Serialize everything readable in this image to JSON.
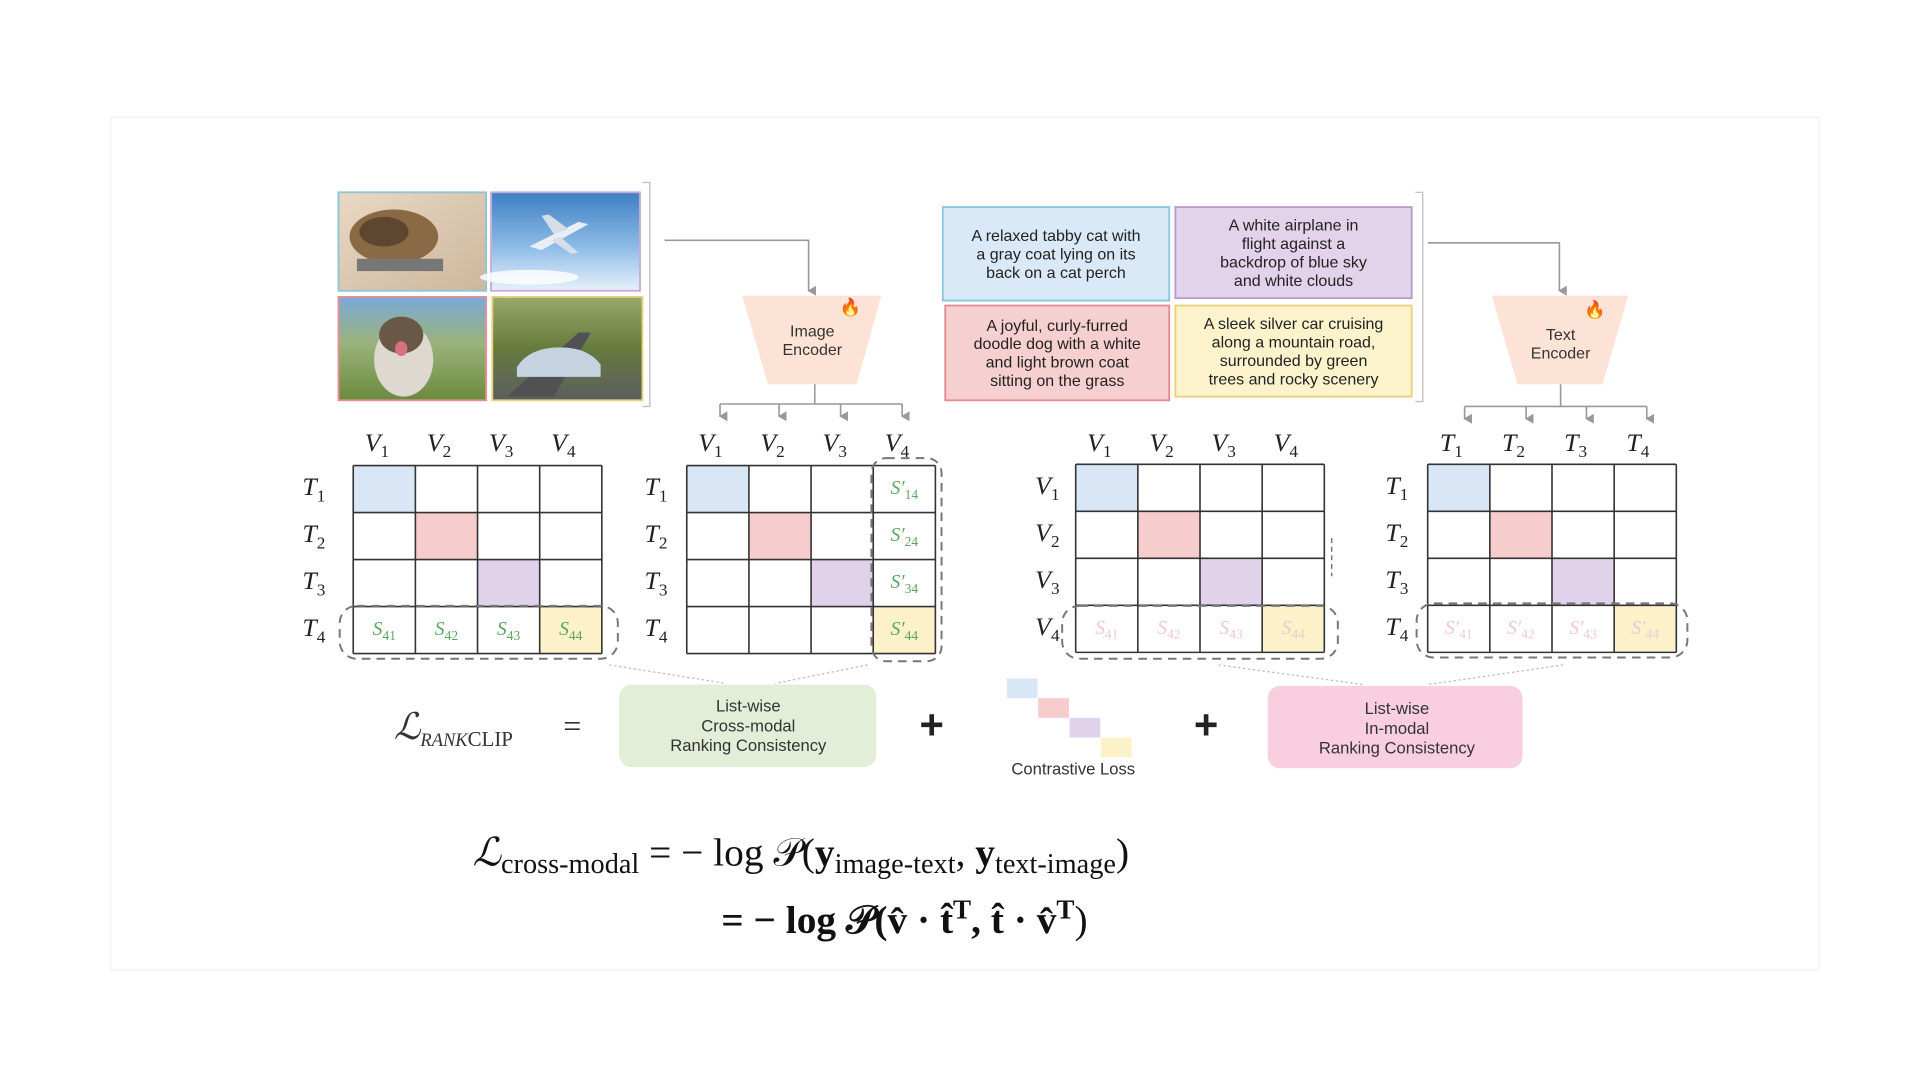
{
  "images": [
    {
      "subject": "cat",
      "border": "#8cc5d6"
    },
    {
      "subject": "airplane",
      "border": "#c9a9d6"
    },
    {
      "subject": "dog",
      "border": "#e88f96"
    },
    {
      "subject": "car",
      "border": "#e6d27a"
    }
  ],
  "captions": [
    {
      "text": [
        "A relaxed tabby cat with",
        "a gray coat lying on its",
        "back on a cat perch"
      ],
      "fill": "#d9e9f7",
      "border": "#8cc5e0"
    },
    {
      "text": [
        "A white airplane in",
        "flight against a",
        "backdrop of blue sky",
        "and white clouds"
      ],
      "fill": "#e3d3ea",
      "border": "#b99bc9"
    },
    {
      "text": [
        "A joyful, curly-furred",
        "doodle dog with a white",
        "and light brown coat",
        "sitting on the grass"
      ],
      "fill": "#f6cfd0",
      "border": "#e28c92"
    },
    {
      "text": [
        "A sleek silver car cruising",
        "along a mountain road,",
        "surrounded by green",
        "trees and rocky scenery"
      ],
      "fill": "#fcf3cc",
      "border": "#e6d27a"
    }
  ],
  "encoders": {
    "image": [
      "Image",
      "Encoder"
    ],
    "text": [
      "Text",
      "Encoder"
    ],
    "fill": "#fde3d6",
    "flame_icon": "fire"
  },
  "diagonal_colors": [
    "#d8e6f6",
    "#f6cccc",
    "#e0d2ea",
    "#fcf1c8"
  ],
  "matrices": [
    {
      "cols": [
        [
          "V",
          "1"
        ],
        [
          "V",
          "2"
        ],
        [
          "V",
          "3"
        ],
        [
          "V",
          "4"
        ]
      ],
      "rows": [
        [
          "T",
          "1"
        ],
        [
          "T",
          "2"
        ],
        [
          "T",
          "3"
        ],
        [
          "T",
          "4"
        ]
      ],
      "scores": [
        {
          "r": 3,
          "c": 0,
          "b": "S",
          "s": "41"
        },
        {
          "r": 3,
          "c": 1,
          "b": "S",
          "s": "42"
        },
        {
          "r": 3,
          "c": 2,
          "b": "S",
          "s": "43"
        },
        {
          "r": 3,
          "c": 3,
          "b": "S",
          "s": "44"
        }
      ],
      "score_color": "#5aa860"
    },
    {
      "cols": [
        [
          "V",
          "1"
        ],
        [
          "V",
          "2"
        ],
        [
          "V",
          "3"
        ],
        [
          "V",
          "4"
        ]
      ],
      "rows": [
        [
          "T",
          "1"
        ],
        [
          "T",
          "2"
        ],
        [
          "T",
          "3"
        ],
        [
          "T",
          "4"
        ]
      ],
      "scores": [
        {
          "r": 0,
          "c": 3,
          "b": "S′",
          "s": "14"
        },
        {
          "r": 1,
          "c": 3,
          "b": "S′",
          "s": "24"
        },
        {
          "r": 2,
          "c": 3,
          "b": "S′",
          "s": "34"
        },
        {
          "r": 3,
          "c": 3,
          "b": "S′",
          "s": "44"
        }
      ],
      "score_color": "#5aa860"
    },
    {
      "cols": [
        [
          "V",
          "1"
        ],
        [
          "V",
          "2"
        ],
        [
          "V",
          "3"
        ],
        [
          "V",
          "4"
        ]
      ],
      "rows": [
        [
          "V",
          "1"
        ],
        [
          "V",
          "2"
        ],
        [
          "V",
          "3"
        ],
        [
          "V",
          "4"
        ]
      ],
      "scores": [
        {
          "r": 3,
          "c": 0,
          "b": "S",
          "s": "41"
        },
        {
          "r": 3,
          "c": 1,
          "b": "S",
          "s": "42"
        },
        {
          "r": 3,
          "c": 2,
          "b": "S",
          "s": "43"
        },
        {
          "r": 3,
          "c": 3,
          "b": "S",
          "s": "44"
        }
      ],
      "score_color": "#efc7d6"
    },
    {
      "cols": [
        [
          "T",
          "1"
        ],
        [
          "T",
          "2"
        ],
        [
          "T",
          "3"
        ],
        [
          "T",
          "4"
        ]
      ],
      "rows": [
        [
          "T",
          "1"
        ],
        [
          "T",
          "2"
        ],
        [
          "T",
          "3"
        ],
        [
          "T",
          "4"
        ]
      ],
      "scores": [
        {
          "r": 3,
          "c": 0,
          "b": "S′",
          "s": "41"
        },
        {
          "r": 3,
          "c": 1,
          "b": "S′",
          "s": "42"
        },
        {
          "r": 3,
          "c": 2,
          "b": "S′",
          "s": "43"
        },
        {
          "r": 3,
          "c": 3,
          "b": "S′",
          "s": "44"
        }
      ],
      "score_color": "#efc7d6"
    }
  ],
  "loss": {
    "lhs_symbol": "ℒ",
    "lhs_sub_rank": "RANK",
    "lhs_sub_clip": "CLIP",
    "equals": "=",
    "plus": "+",
    "cross_modal_box": {
      "lines": [
        "List-wise",
        "Cross-modal",
        "Ranking Consistency"
      ],
      "fill": "#e2eed7"
    },
    "contrastive_label": "Contrastive Loss",
    "in_modal_box": {
      "lines": [
        "List-wise",
        "In-modal",
        "Ranking Consistency"
      ],
      "fill": "#f9cfe0"
    }
  },
  "equation": {
    "line1": {
      "L": "ℒ",
      "sub": "cross-modal",
      "mid": "= − log 𝒫(",
      "y1": "y",
      "y1_sub": "image-text",
      "comma": ", ",
      "y2": "y",
      "y2_sub": "text-image",
      "close": ")"
    },
    "line2": {
      "text": "= − log 𝒫(v̂ · t̂",
      "sup1": "T",
      "mid": ", t̂ · v̂",
      "sup2": "T",
      "close": ")"
    }
  }
}
